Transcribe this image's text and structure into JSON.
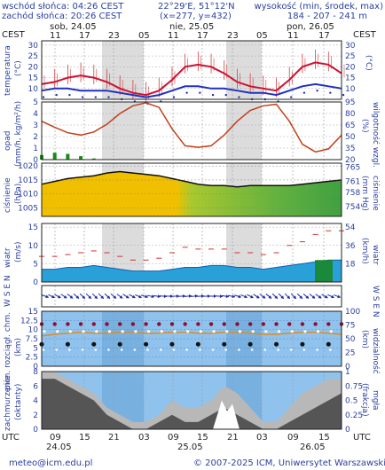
{
  "header": {
    "sunrise": "wschód słońca: 04:26 CEST",
    "sunset": "zachód słońca: 20:26 CEST",
    "coords": "22°29'E, 51°12'N",
    "grid": "(x=277, y=432)",
    "height_label": "wysokość (min, środek, max)",
    "height_values": "184 - 207 - 241 m"
  },
  "top_axis": {
    "tz_left": "CEST",
    "tz_right": "CEST",
    "days": [
      "sob, 24.05",
      "nie, 25.05",
      "pon, 26.05"
    ],
    "hours": [
      "11",
      "17",
      "23",
      "05",
      "11",
      "17",
      "23",
      "05",
      "11",
      "17"
    ]
  },
  "bottom_axis": {
    "tz_left": "UTC",
    "tz_right": "UTC",
    "hours": [
      "09",
      "15",
      "21",
      "03",
      "09",
      "15",
      "21",
      "03",
      "09",
      "15"
    ],
    "days": [
      "24.05",
      "25.05",
      "26.05"
    ]
  },
  "footer": {
    "email": "meteo@icm.edu.pl",
    "copyright": "© 2007-2025 ICM, Uniwersytet Warszawski"
  },
  "panels": {
    "temperature": {
      "left": "temperatura",
      "left_unit": "(°C)",
      "right_unit": "(°C)"
    },
    "precip": {
      "left1": "opad",
      "left2": "(mm/h, kg/m²/h)",
      "right1": "(%)",
      "right2": "wilgotność wzgl."
    },
    "pressure": {
      "left1": "ciśnienie",
      "left2": "(hPa)",
      "right1": "(mm Hg)",
      "right2": "ciśnienie"
    },
    "wind": {
      "left1": "wiatr",
      "left2": "(m/s)",
      "right1": "(km/h)",
      "right2": "wiatr"
    },
    "wind_dir": {
      "left": "W S E N",
      "right": "W S E N"
    },
    "cloud_base": {
      "left1": "pion. rozciągł. chm.",
      "left2": "(km)",
      "right1": "(km)",
      "right2": "widzialność"
    },
    "cloud_cover": {
      "left1": "zachmurzenie",
      "left2": "(oktanty)",
      "right1": "(frakcja)",
      "right2": "mgła"
    }
  },
  "chart_data": [
    {
      "type": "line",
      "name": "temperature",
      "ylim": [
        0,
        30
      ],
      "yticks_left": [
        10,
        15,
        20,
        25,
        30
      ],
      "yticks_right": [
        10,
        15,
        20,
        25,
        30
      ],
      "x_hours": [
        0,
        3,
        6,
        9,
        12,
        15,
        18,
        21,
        24,
        27,
        30,
        33,
        36,
        39,
        42,
        45,
        48,
        51,
        54,
        57,
        60,
        63,
        66,
        69
      ],
      "series": [
        {
          "name": "temp",
          "values": [
            12,
            13,
            15,
            16,
            15,
            13,
            10,
            8,
            7,
            9,
            14,
            20,
            21,
            20,
            17,
            13,
            11,
            10,
            9,
            14,
            20,
            22,
            21,
            17
          ]
        },
        {
          "name": "dew",
          "values": [
            9,
            10,
            10,
            9,
            9,
            9,
            8,
            7,
            6,
            7,
            9,
            11,
            11,
            10,
            10,
            9,
            8,
            8,
            7,
            9,
            11,
            12,
            11,
            10
          ]
        }
      ]
    },
    {
      "type": "line",
      "name": "precip_humidity",
      "yticks_left": [
        0,
        1,
        2,
        3,
        4,
        5
      ],
      "yticks_right": [
        20,
        35,
        50,
        65,
        80,
        95
      ],
      "precip_max": [
        0.4,
        0.6,
        0.5,
        0.3,
        0.1,
        0,
        0,
        0,
        0,
        0,
        0,
        0,
        0,
        0,
        0,
        0,
        0,
        0,
        0,
        0,
        0,
        0,
        0,
        0
      ],
      "humidity": [
        70,
        62,
        55,
        52,
        56,
        66,
        80,
        90,
        94,
        88,
        60,
        38,
        36,
        38,
        52,
        70,
        84,
        90,
        92,
        70,
        40,
        30,
        34,
        52
      ]
    },
    {
      "type": "area",
      "name": "pressure",
      "ylim": [
        1000,
        1020
      ],
      "yticks_left": [
        1005,
        1010,
        1015,
        1020
      ],
      "yticks_right": [
        754,
        758,
        761,
        765
      ],
      "values": [
        1013.5,
        1014.5,
        1015.5,
        1016,
        1016.5,
        1017.5,
        1018,
        1017.5,
        1017,
        1016.5,
        1015.5,
        1014.5,
        1013.5,
        1013,
        1013,
        1012.5,
        1013,
        1013,
        1013,
        1013,
        1013.5,
        1014,
        1014.5,
        1015
      ]
    },
    {
      "type": "line",
      "name": "wind",
      "yticks_left": [
        0,
        5,
        10,
        15
      ],
      "yticks_right": [
        18,
        36,
        54
      ],
      "speed": [
        3.5,
        3.5,
        4,
        4,
        4.5,
        4,
        3.5,
        3,
        3,
        3,
        3.5,
        4,
        4,
        4.5,
        4.5,
        4,
        4,
        3.5,
        4,
        4.5,
        5,
        5.5,
        6,
        6
      ],
      "gust": [
        7,
        7,
        7.5,
        8,
        8.5,
        8,
        7,
        6,
        6,
        6.5,
        8,
        9.5,
        9,
        9,
        9,
        8,
        8,
        7.5,
        8,
        10,
        11,
        13,
        14,
        14
      ]
    },
    {
      "type": "scatter",
      "name": "cloud_base_visibility",
      "yticks_left": [
        0,
        2.5,
        5,
        7.5,
        10,
        12.5,
        15
      ],
      "yticks_right": [
        0,
        25,
        50,
        75,
        100
      ],
      "visibility": [
        55,
        58,
        60,
        62,
        60,
        60,
        62,
        62,
        60,
        60,
        62,
        62,
        60,
        60,
        62,
        62,
        60,
        58,
        58,
        60,
        62,
        62,
        60,
        58
      ]
    },
    {
      "type": "area",
      "name": "cloud_cover",
      "yticks_left": [
        0,
        2,
        4,
        6,
        8
      ],
      "yticks_right": [
        0,
        0.25,
        0.5,
        0.75,
        1
      ],
      "low": [
        7,
        7,
        6,
        5,
        4,
        2,
        1,
        0,
        0,
        1,
        2,
        1,
        1,
        2,
        3,
        2,
        1,
        0,
        0,
        1,
        2,
        3,
        4,
        5
      ],
      "mid": [
        8,
        8,
        7,
        6,
        5,
        3,
        2,
        1,
        1,
        2,
        4,
        3,
        3,
        4,
        6,
        5,
        3,
        1,
        1,
        3,
        5,
        6,
        7,
        7
      ]
    }
  ]
}
